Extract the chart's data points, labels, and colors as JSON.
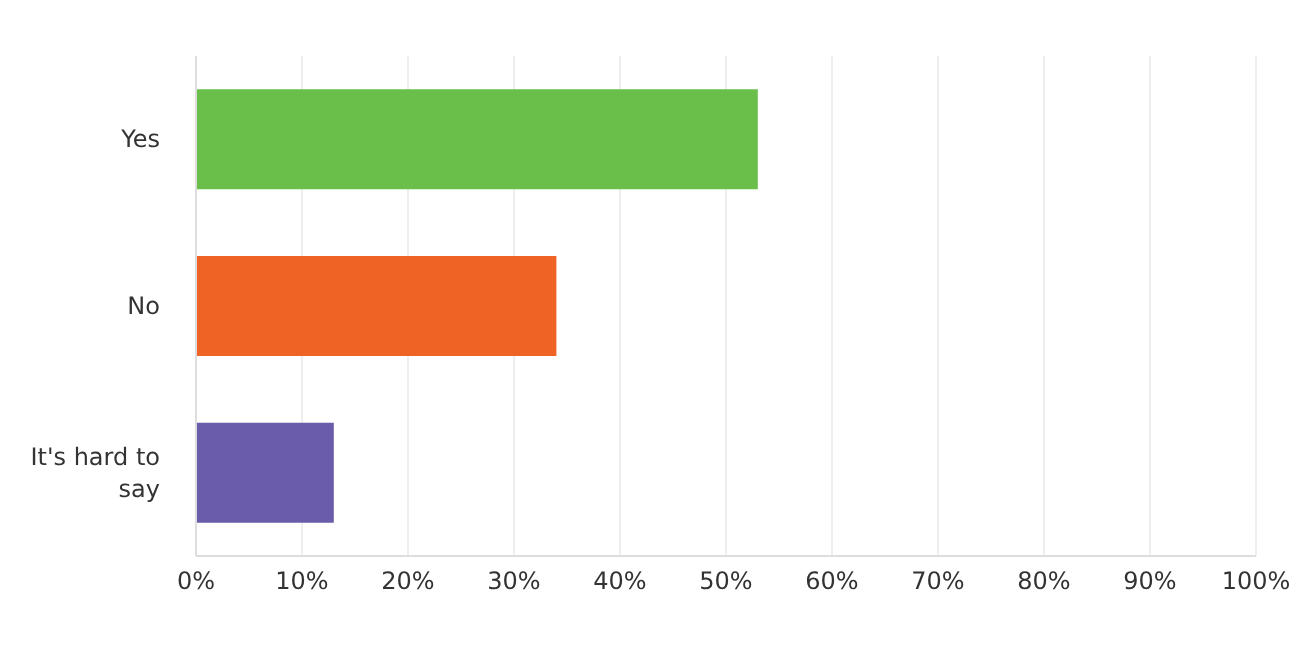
{
  "chart_data": {
    "type": "bar",
    "orientation": "horizontal",
    "categories": [
      "Yes",
      "No",
      "It's hard to say"
    ],
    "values": [
      53,
      34,
      13
    ],
    "colors": [
      "#6abf4b",
      "#ef6424",
      "#6b5bab"
    ],
    "xlim": [
      0,
      100
    ],
    "xticks": [
      {
        "value": 0,
        "label": "0%"
      },
      {
        "value": 10,
        "label": "10%"
      },
      {
        "value": 20,
        "label": "20%"
      },
      {
        "value": 30,
        "label": "30%"
      },
      {
        "value": 40,
        "label": "40%"
      },
      {
        "value": 50,
        "label": "50%"
      },
      {
        "value": 60,
        "label": "60%"
      },
      {
        "value": 70,
        "label": "70%"
      },
      {
        "value": 80,
        "label": "80%"
      },
      {
        "value": 90,
        "label": "90%"
      },
      {
        "value": 100,
        "label": "100%"
      }
    ],
    "grid": "x"
  }
}
